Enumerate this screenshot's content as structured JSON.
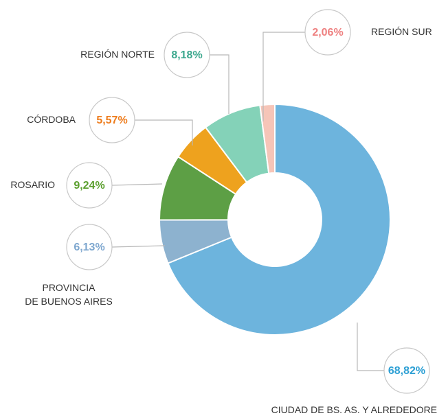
{
  "chart_data": {
    "type": "donut",
    "categories": [
      "CIUDAD DE BS. AS. Y ALREDEDORES",
      "PROVINCIA\nDE BUENOS AIRES",
      "ROSARIO",
      "CÓRDOBA",
      "REGIÓN NORTE",
      "REGIÓN SUR"
    ],
    "values": [
      68.82,
      6.13,
      9.24,
      5.57,
      8.18,
      2.06
    ],
    "value_labels": [
      "68,82%",
      "6,13%",
      "9,24%",
      "5,57%",
      "8,18%",
      "2,06%"
    ],
    "colors": [
      "#6db4dd",
      "#8db2cf",
      "#5d9f45",
      "#eea21e",
      "#84d2b8",
      "#f6c5b8"
    ],
    "label_colors": [
      "#2c9fd4",
      "#7ea7cf",
      "#5b9f2e",
      "#ee7d1e",
      "#3da88e",
      "#ee8080"
    ]
  }
}
